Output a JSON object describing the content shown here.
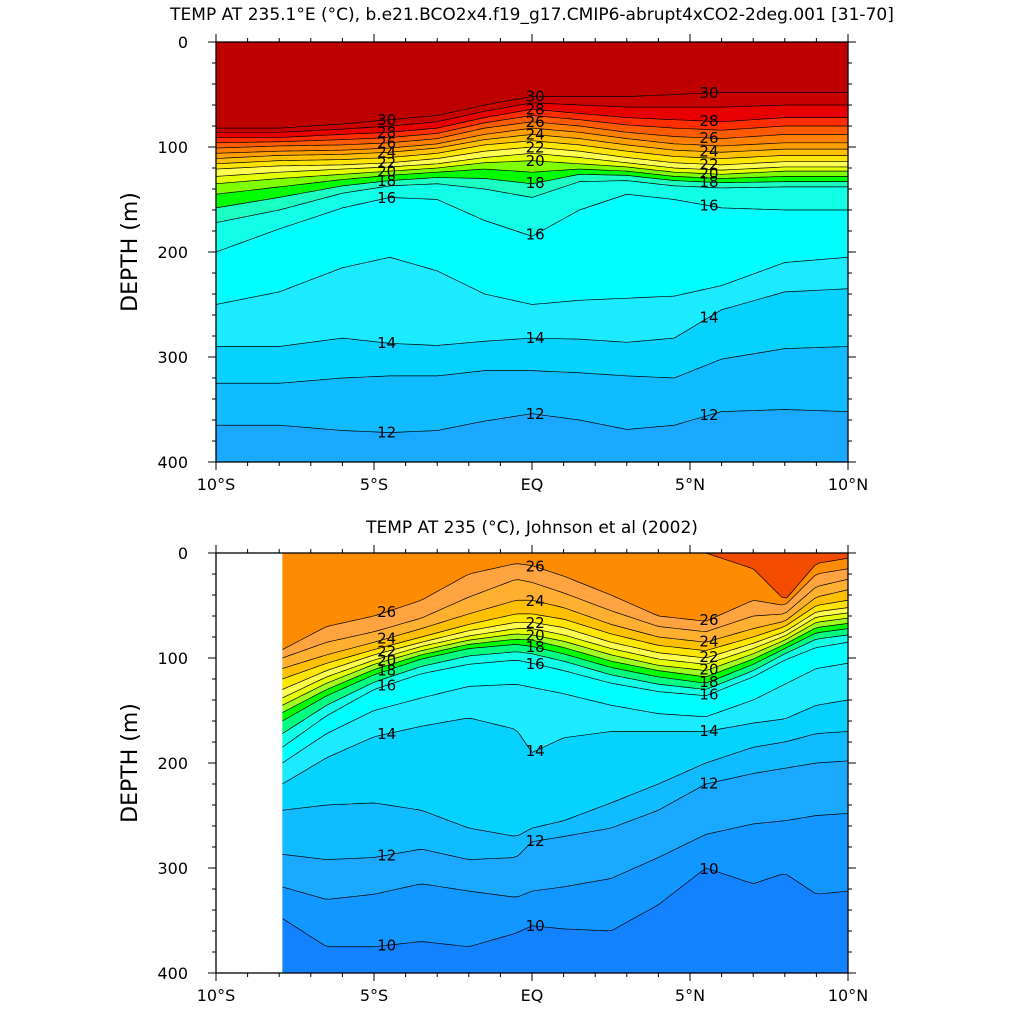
{
  "chart_data": [
    {
      "type": "contour",
      "title": "TEMP AT 235.1°E (°C), b.e21.BCO2x4.f19_g17.CMIP6-abrupt4xCO2-2deg.001 [31-70]",
      "ylabel": "DEPTH (m)",
      "xlabel": "",
      "xlim": [
        -10,
        10
      ],
      "ylim": [
        0,
        400
      ],
      "y_reversed": true,
      "xticks": [
        -10,
        -5,
        0,
        5,
        10
      ],
      "xtick_labels": [
        "10°S",
        "5°S",
        "EQ",
        "5°N",
        "10°N"
      ],
      "yticks": [
        0,
        100,
        200,
        300,
        400
      ],
      "ytick_labels": [
        "0",
        "100",
        "200",
        "300",
        "400"
      ],
      "data_xrange": [
        -10,
        10
      ],
      "levels": [
        11,
        12,
        13,
        14,
        15,
        16,
        17,
        18,
        19,
        20,
        21,
        22,
        23,
        24,
        25,
        26,
        27,
        28,
        29,
        30
      ],
      "fills": [
        "#1296ff",
        "#1aa9ff",
        "#10bcff",
        "#05d2ff",
        "#1cebff",
        "#00ffff",
        "#10ffe6",
        "#1cffc2",
        "#00ff00",
        "#80ff00",
        "#e4ff00",
        "#ffff52",
        "#ffe600",
        "#ffc000",
        "#ffa000",
        "#ff7f00",
        "#ff5b00",
        "#ff2d00",
        "#e80000",
        "#c80000",
        "#bf0000"
      ],
      "label_levels": [
        12,
        14,
        16,
        18,
        20,
        22,
        24,
        26,
        28,
        30
      ],
      "profile_lats": [
        -10,
        -8,
        -6,
        -4.5,
        -3,
        -1.5,
        0,
        1.5,
        3,
        4.5,
        6,
        8,
        10
      ],
      "isotherm_depths": {
        "30": [
          82,
          82,
          78,
          74,
          70,
          60,
          52,
          52,
          52,
          50,
          48,
          48,
          48
        ],
        "29": [
          86,
          86,
          83,
          80,
          76,
          66,
          58,
          60,
          62,
          62,
          62,
          60,
          60
        ],
        "28": [
          91,
          91,
          88,
          86,
          82,
          72,
          64,
          68,
          72,
          74,
          76,
          72,
          72
        ],
        "27": [
          96,
          95,
          93,
          91,
          87,
          77,
          70,
          74,
          79,
          82,
          84,
          80,
          80
        ],
        "26": [
          101,
          99,
          98,
          96,
          92,
          82,
          76,
          80,
          86,
          90,
          92,
          88,
          88
        ],
        "25": [
          106,
          104,
          103,
          101,
          97,
          88,
          82,
          86,
          92,
          97,
          99,
          96,
          96
        ],
        "24": [
          111,
          108,
          107,
          105,
          101,
          93,
          88,
          92,
          98,
          103,
          105,
          102,
          102
        ],
        "23": [
          116,
          113,
          112,
          110,
          106,
          98,
          94,
          98,
          104,
          109,
          111,
          108,
          108
        ],
        "22": [
          121,
          118,
          117,
          115,
          111,
          104,
          100,
          104,
          110,
          115,
          117,
          114,
          114
        ],
        "21": [
          128,
          124,
          121,
          119,
          116,
          110,
          106,
          110,
          115,
          120,
          122,
          119,
          119
        ],
        "20": [
          135,
          130,
          126,
          123,
          120,
          115,
          113,
          116,
          119,
          124,
          126,
          123,
          123
        ],
        "19": [
          145,
          138,
          131,
          127,
          124,
          121,
          124,
          121,
          123,
          128,
          130,
          128,
          128
        ],
        "18": [
          158,
          148,
          137,
          132,
          129,
          130,
          135,
          126,
          127,
          132,
          134,
          133,
          133
        ],
        "17": [
          172,
          160,
          144,
          137,
          135,
          140,
          148,
          133,
          132,
          137,
          139,
          138,
          138
        ],
        "16": [
          200,
          178,
          158,
          148,
          150,
          170,
          185,
          160,
          145,
          150,
          158,
          160,
          160
        ],
        "15": [
          250,
          238,
          215,
          205,
          218,
          240,
          250,
          246,
          244,
          242,
          232,
          210,
          205
        ],
        "14": [
          290,
          290,
          282,
          287,
          289,
          285,
          282,
          283,
          286,
          282,
          255,
          238,
          235
        ],
        "13": [
          325,
          325,
          320,
          318,
          318,
          313,
          313,
          315,
          318,
          320,
          302,
          292,
          290
        ],
        "12": [
          365,
          365,
          370,
          372,
          370,
          361,
          354,
          360,
          369,
          365,
          352,
          350,
          352
        ],
        "11": [
          400,
          400,
          400,
          400,
          400,
          400,
          400,
          400,
          400,
          400,
          400,
          400,
          400
        ]
      }
    },
    {
      "type": "contour",
      "title": "TEMP AT 235 (°C), Johnson et al (2002)",
      "ylabel": "DEPTH (m)",
      "xlabel": "",
      "xlim": [
        -10,
        10
      ],
      "ylim": [
        0,
        400
      ],
      "y_reversed": true,
      "xticks": [
        -10,
        -5,
        0,
        5,
        10
      ],
      "xtick_labels": [
        "10°S",
        "5°S",
        "EQ",
        "5°N",
        "10°N"
      ],
      "yticks": [
        0,
        100,
        200,
        300,
        400
      ],
      "ytick_labels": [
        "0",
        "100",
        "200",
        "300",
        "400"
      ],
      "data_xrange": [
        -7.9,
        10
      ],
      "levels": [
        9,
        10,
        11,
        12,
        13,
        14,
        15,
        16,
        17,
        18,
        19,
        20,
        21,
        22,
        23,
        24,
        25,
        26,
        27
      ],
      "fills": [
        "#1c70ef",
        "#1282ff",
        "#1296ff",
        "#1aa9ff",
        "#10bcff",
        "#05d2ff",
        "#1cebff",
        "#00ffff",
        "#10ffe6",
        "#00ff80",
        "#00ff00",
        "#a0ff20",
        "#e4ff00",
        "#ffff50",
        "#ffe600",
        "#ffc000",
        "#ffb030",
        "#ffa440",
        "#ff8c00",
        "#f34b00"
      ],
      "label_levels": [
        10,
        12,
        14,
        16,
        18,
        20,
        22,
        24,
        26
      ],
      "profile_lats": [
        -7.9,
        -6.5,
        -5,
        -3.5,
        -2,
        -0.5,
        0,
        1,
        2.5,
        4,
        5.5,
        7,
        8,
        9,
        10
      ],
      "isotherm_depths": {
        "27": [
          0,
          0,
          0,
          0,
          0,
          0,
          0,
          0,
          0,
          0,
          0,
          15,
          45,
          10,
          5
        ],
        "26": [
          92,
          70,
          60,
          45,
          20,
          10,
          12,
          22,
          40,
          60,
          65,
          45,
          50,
          20,
          15
        ],
        "25": [
          100,
          85,
          75,
          62,
          42,
          25,
          28,
          38,
          55,
          70,
          75,
          60,
          58,
          32,
          25
        ],
        "24": [
          110,
          97,
          85,
          72,
          58,
          45,
          45,
          52,
          68,
          80,
          85,
          72,
          65,
          42,
          35
        ],
        "23": [
          120,
          105,
          92,
          80,
          68,
          58,
          58,
          63,
          77,
          88,
          93,
          80,
          70,
          50,
          45
        ],
        "22": [
          130,
          112,
          97,
          85,
          74,
          66,
          66,
          71,
          85,
          95,
          100,
          86,
          75,
          56,
          52
        ],
        "21": [
          138,
          118,
          102,
          89,
          79,
          72,
          72,
          78,
          91,
          101,
          106,
          91,
          79,
          61,
          57
        ],
        "20": [
          145,
          124,
          106,
          93,
          83,
          77,
          78,
          84,
          97,
          107,
          112,
          96,
          83,
          66,
          62
        ],
        "19": [
          152,
          130,
          111,
          97,
          87,
          82,
          83,
          90,
          103,
          112,
          118,
          101,
          87,
          71,
          67
        ],
        "18": [
          160,
          136,
          116,
          101,
          91,
          87,
          89,
          96,
          109,
          118,
          124,
          106,
          91,
          76,
          72
        ],
        "17": [
          172,
          145,
          123,
          108,
          98,
          94,
          96,
          103,
          116,
          125,
          130,
          112,
          96,
          82,
          78
        ],
        "16": [
          185,
          155,
          130,
          115,
          106,
          102,
          105,
          112,
          124,
          132,
          136,
          118,
          102,
          90,
          85
        ],
        "15": [
          200,
          172,
          150,
          138,
          127,
          125,
          128,
          134,
          145,
          153,
          156,
          140,
          125,
          110,
          105
        ],
        "14": [
          220,
          195,
          175,
          165,
          157,
          168,
          190,
          176,
          170,
          170,
          170,
          162,
          158,
          145,
          140
        ],
        "13": [
          245,
          240,
          238,
          245,
          262,
          270,
          262,
          255,
          238,
          220,
          200,
          185,
          180,
          172,
          170
        ],
        "12": [
          287,
          292,
          290,
          282,
          292,
          290,
          275,
          270,
          262,
          245,
          220,
          210,
          205,
          200,
          198
        ],
        "11": [
          318,
          330,
          325,
          315,
          322,
          328,
          322,
          318,
          310,
          290,
          268,
          258,
          255,
          250,
          248
        ],
        "10": [
          348,
          375,
          375,
          370,
          375,
          362,
          355,
          358,
          360,
          335,
          300,
          315,
          305,
          325,
          322
        ],
        "9": [
          400,
          400,
          400,
          400,
          400,
          400,
          400,
          400,
          400,
          400,
          400,
          400,
          400,
          400,
          400
        ]
      }
    }
  ]
}
